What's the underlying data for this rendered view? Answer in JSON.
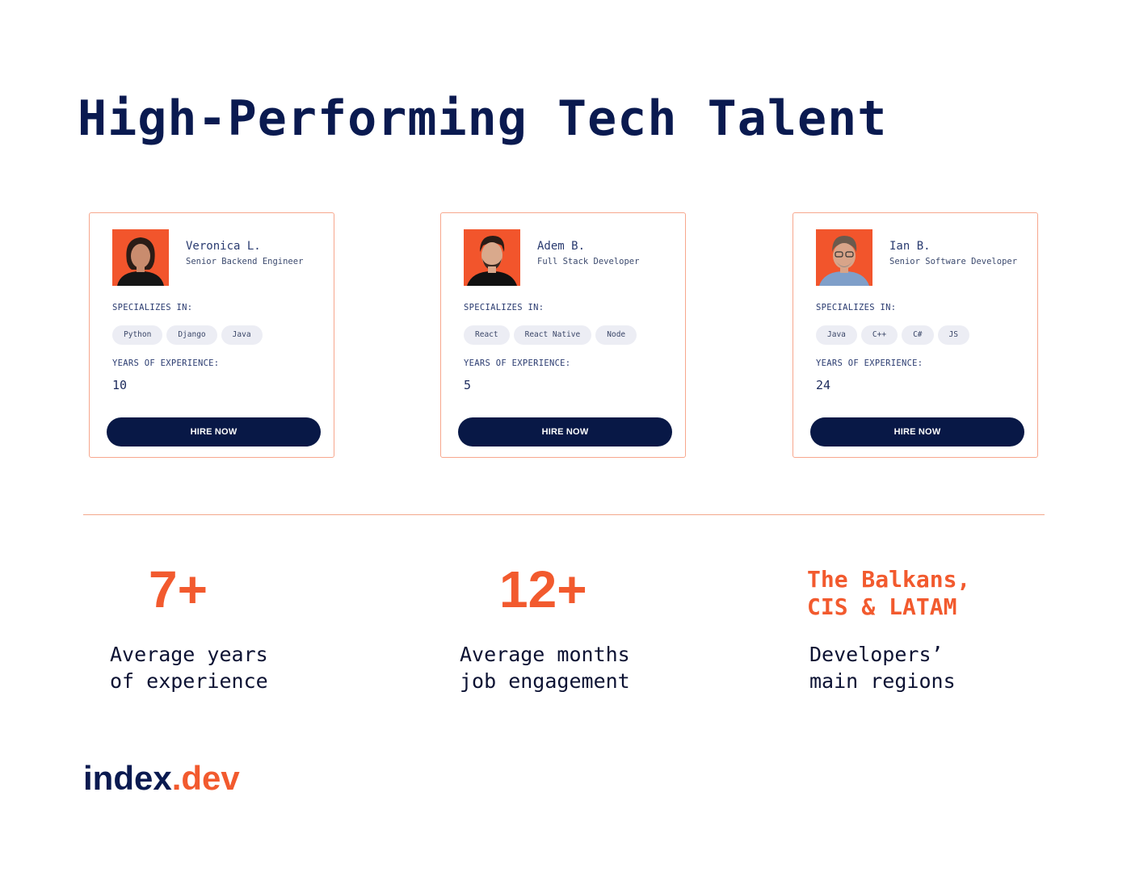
{
  "title": "High-Performing Tech Talent",
  "cards": [
    {
      "name": "Veronica L.",
      "role": "Senior Backend Engineer",
      "specializes_label": "SPECIALIZES IN:",
      "skills": [
        "Python",
        "Django",
        "Java"
      ],
      "years_label": "YEARS OF EXPERIENCE:",
      "years": "10",
      "button_label": "HIRE NOW"
    },
    {
      "name": "Adem B.",
      "role": "Full Stack Developer",
      "specializes_label": "SPECIALIZES IN:",
      "skills": [
        "React",
        "React Native",
        "Node"
      ],
      "years_label": "YEARS OF EXPERIENCE:",
      "years": "5",
      "button_label": "HIRE NOW"
    },
    {
      "name": "Ian B.",
      "role": "Senior Software Developer",
      "specializes_label": "SPECIALIZES IN:",
      "skills": [
        "Java",
        "C++",
        "C#",
        "JS"
      ],
      "years_label": "YEARS OF EXPERIENCE:",
      "years": "24",
      "button_label": "HIRE NOW"
    }
  ],
  "stats": [
    {
      "value": "7+",
      "label": "Average years\nof experience"
    },
    {
      "value": "12+",
      "label": "Average months\njob engagement"
    },
    {
      "value": "The Balkans,\nCIS & LATAM",
      "label": "Developers’\nmain regions"
    }
  ],
  "logo": {
    "main": "index",
    "accent": ".dev"
  },
  "colors": {
    "accent": "#f25a2e",
    "navy": "#081846",
    "border": "#f7a78d"
  },
  "icons": {
    "avatar": "person-photo-icon"
  }
}
